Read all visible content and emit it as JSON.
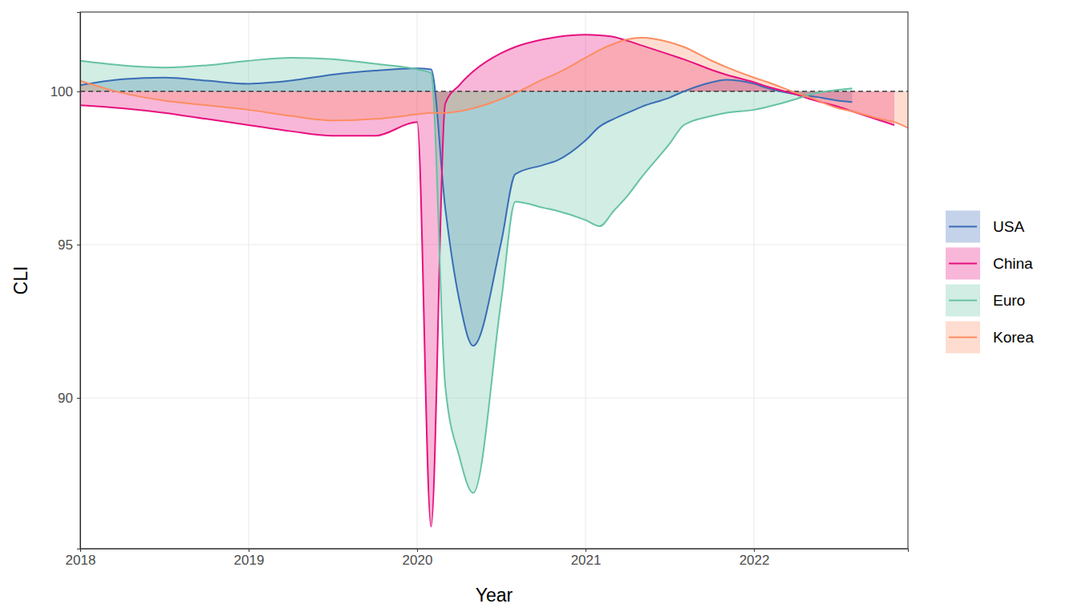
{
  "chart_data": {
    "type": "area",
    "x_label": "Year",
    "y_label": "CLI",
    "x": [
      2018.0,
      2018.25,
      2018.5,
      2018.75,
      2019.0,
      2019.25,
      2019.5,
      2019.75,
      2020.0,
      2020.083,
      2020.167,
      2020.25,
      2020.333,
      2020.5,
      2020.583,
      2020.75,
      2020.833,
      2021.0,
      2021.083,
      2021.167,
      2021.25,
      2021.333,
      2021.5,
      2021.583,
      2021.75,
      2021.833,
      2022.0,
      2022.083,
      2022.25,
      2022.333,
      2022.5,
      2022.583,
      2022.75,
      2022.833,
      2022.917
    ],
    "baseline": 100,
    "series": [
      {
        "name": "USA",
        "color": "#3a6db5",
        "values": [
          100.2,
          100.4,
          100.45,
          100.35,
          100.25,
          100.35,
          100.55,
          100.68,
          100.75,
          100.72,
          96.2,
          93.2,
          91.7,
          95.1,
          97.3,
          97.6,
          97.75,
          98.4,
          98.85,
          99.1,
          99.3,
          99.5,
          99.8,
          100.0,
          100.3,
          100.38,
          100.25,
          100.1,
          99.9,
          99.85,
          99.7,
          99.65,
          null,
          null,
          null
        ]
      },
      {
        "name": "China",
        "color": "#e7107f",
        "values": [
          99.55,
          99.45,
          99.3,
          99.1,
          98.9,
          98.7,
          98.55,
          98.55,
          99.0,
          85.8,
          99.6,
          100.2,
          100.65,
          101.25,
          101.45,
          101.7,
          101.78,
          101.85,
          101.83,
          101.78,
          101.65,
          101.5,
          101.2,
          101.05,
          100.7,
          100.55,
          100.3,
          100.15,
          99.9,
          99.75,
          99.5,
          99.35,
          99.05,
          98.9,
          null
        ]
      },
      {
        "name": "Euro",
        "color": "#66c2a5",
        "values": [
          101.0,
          100.85,
          100.78,
          100.85,
          101.0,
          101.1,
          101.05,
          100.9,
          100.72,
          100.6,
          90.4,
          88.1,
          86.9,
          93.2,
          96.4,
          96.2,
          96.1,
          95.8,
          95.6,
          96.1,
          96.6,
          97.2,
          98.3,
          98.9,
          99.2,
          99.3,
          99.4,
          99.5,
          99.75,
          99.9,
          100.05,
          100.1,
          null,
          null,
          null
        ]
      },
      {
        "name": "Korea",
        "color": "#fc8d62",
        "values": [
          100.35,
          99.95,
          99.7,
          99.55,
          99.4,
          99.2,
          99.05,
          99.1,
          99.25,
          99.3,
          99.3,
          99.35,
          99.45,
          99.75,
          99.95,
          100.4,
          100.6,
          101.1,
          101.35,
          101.55,
          101.7,
          101.75,
          101.6,
          101.45,
          101.0,
          100.8,
          100.45,
          100.3,
          99.95,
          99.8,
          99.45,
          99.35,
          99.1,
          99.0,
          98.8
        ]
      }
    ],
    "xlim": [
      2018,
      2022.914
    ],
    "ylim": [
      85.08,
      102.59
    ],
    "xticks": [
      2018,
      2019,
      2020,
      2021,
      2022
    ],
    "yticks": [
      90,
      95,
      100
    ],
    "grid": true,
    "legend": "right"
  }
}
